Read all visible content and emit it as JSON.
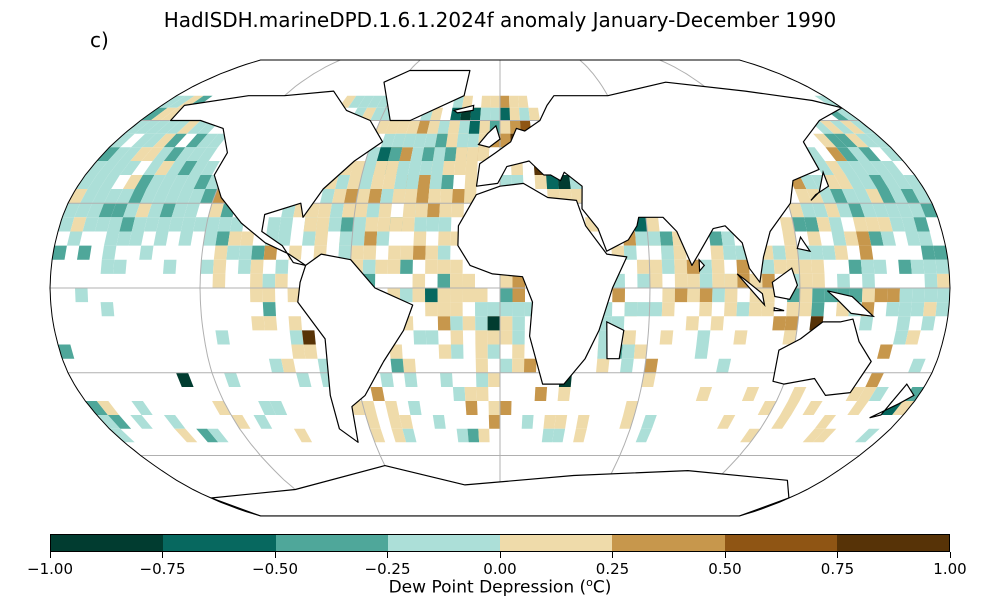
{
  "title": "HadISDH.marineDPD.1.6.1.2024f anomaly January-December 1990",
  "panel_label": "c)",
  "colorbar": {
    "label": "Dew Point Depression (",
    "label_sup": "o",
    "label_end": "C)",
    "ticks": [
      "−1.00",
      "−0.75",
      "−0.50",
      "−0.25",
      "0.00",
      "0.25",
      "0.50",
      "0.75",
      "1.00"
    ],
    "colors": [
      "#013c30",
      "#07685f",
      "#4fa79a",
      "#acdfd8",
      "#efdbaa",
      "#c7974c",
      "#8f5514",
      "#573307"
    ]
  },
  "chart_data": {
    "type": "heatmap",
    "projection": "Robinson",
    "title": "HadISDH.marineDPD.1.6.1.2024f anomaly January-December 1990",
    "colorbar_label": "Dew Point Depression (oC)",
    "vmin": -1.0,
    "vmax": 1.0,
    "levels": [
      -1.0,
      -0.75,
      -0.5,
      -0.25,
      0.0,
      0.25,
      0.5,
      0.75,
      1.0
    ],
    "grid": true,
    "cell_size_deg": 5,
    "cells_note": "lat/lon centre (deg), value = anomaly class in data units",
    "cells": [
      {
        "lat": 62.5,
        "lon": -37.5,
        "v": -0.1
      },
      {
        "lat": 62.5,
        "lon": -22.5,
        "v": -0.6
      },
      {
        "lat": 62.5,
        "lon": -17.5,
        "v": -0.8
      },
      {
        "lat": 62.5,
        "lon": -12.5,
        "v": -0.6
      },
      {
        "lat": 62.5,
        "lon": -7.5,
        "v": -0.1
      },
      {
        "lat": 62.5,
        "lon": 2.5,
        "v": -0.7
      },
      {
        "lat": 57.5,
        "lon": -52.5,
        "v": 0.1
      },
      {
        "lat": 57.5,
        "lon": -32.5,
        "v": 0.1
      },
      {
        "lat": 57.5,
        "lon": -22.5,
        "v": 0.1
      },
      {
        "lat": 57.5,
        "lon": -12.5,
        "v": -0.6
      },
      {
        "lat": 57.5,
        "lon": 7.5,
        "v": 0.4
      },
      {
        "lat": 57.5,
        "lon": 12.5,
        "v": 0.6
      },
      {
        "lat": 52.5,
        "lon": -42.5,
        "v": -0.1
      },
      {
        "lat": 52.5,
        "lon": -27.5,
        "v": -0.4
      },
      {
        "lat": 52.5,
        "lon": -17.5,
        "v": -0.1
      },
      {
        "lat": 52.5,
        "lon": 2.5,
        "v": 0.3
      },
      {
        "lat": 52.5,
        "lon": 7.5,
        "v": 0.9
      },
      {
        "lat": 47.5,
        "lon": -52.5,
        "v": -0.6
      },
      {
        "lat": 47.5,
        "lon": -47.5,
        "v": -0.4
      },
      {
        "lat": 47.5,
        "lon": -37.5,
        "v": -0.1
      },
      {
        "lat": 47.5,
        "lon": -32.5,
        "v": -0.4
      },
      {
        "lat": 47.5,
        "lon": -22.5,
        "v": -0.4
      },
      {
        "lat": 47.5,
        "lon": -17.5,
        "v": 0.1
      },
      {
        "lat": 47.5,
        "lon": -7.5,
        "v": 0.1
      },
      {
        "lat": 47.5,
        "lon": 2.5,
        "v": -0.1
      },
      {
        "lat": 42.5,
        "lon": -62.5,
        "v": 0.1
      },
      {
        "lat": 42.5,
        "lon": -57.5,
        "v": -0.1
      },
      {
        "lat": 42.5,
        "lon": -47.5,
        "v": 0.1
      },
      {
        "lat": 42.5,
        "lon": -27.5,
        "v": -0.1
      },
      {
        "lat": 42.5,
        "lon": -12.5,
        "v": 0.1
      },
      {
        "lat": 42.5,
        "lon": 7.5,
        "v": 0.1
      },
      {
        "lat": 42.5,
        "lon": 17.5,
        "v": 0.9
      },
      {
        "lat": 37.5,
        "lon": -37.5,
        "v": -0.1
      },
      {
        "lat": 37.5,
        "lon": -22.5,
        "v": -0.4
      },
      {
        "lat": 37.5,
        "lon": 22.5,
        "v": -0.6
      },
      {
        "lat": 37.5,
        "lon": 27.5,
        "v": -0.8
      },
      {
        "lat": 32.5,
        "lon": -42.5,
        "v": 0.1
      },
      {
        "lat": 32.5,
        "lon": -17.5,
        "v": 0.3
      },
      {
        "lat": 27.5,
        "lon": -62.5,
        "v": 0.1
      },
      {
        "lat": 27.5,
        "lon": -52.5,
        "v": -0.1
      },
      {
        "lat": 27.5,
        "lon": -32.5,
        "v": 0.1
      },
      {
        "lat": 22.5,
        "lon": -77.5,
        "v": 0.1
      },
      {
        "lat": 22.5,
        "lon": -57.5,
        "v": -0.1
      },
      {
        "lat": 22.5,
        "lon": -42.5,
        "v": 0.1
      },
      {
        "lat": 22.5,
        "lon": 57.5,
        "v": -0.6
      },
      {
        "lat": 17.5,
        "lon": -62.5,
        "v": -0.1
      },
      {
        "lat": 17.5,
        "lon": -32.5,
        "v": 0.1
      },
      {
        "lat": 17.5,
        "lon": 62.5,
        "v": -0.1
      },
      {
        "lat": 12.5,
        "lon": 67.5,
        "v": -0.1
      },
      {
        "lat": 7.5,
        "lon": 77.5,
        "v": 0.3
      },
      {
        "lat": 2.5,
        "lon": 92.5,
        "v": 0.1
      },
      {
        "lat": -2.5,
        "lon": -27.5,
        "v": -0.6
      },
      {
        "lat": -2.5,
        "lon": 2.5,
        "v": -0.4
      },
      {
        "lat": -2.5,
        "lon": 47.5,
        "v": 0.4
      },
      {
        "lat": -7.5,
        "lon": -22.5,
        "v": 0.1
      },
      {
        "lat": -7.5,
        "lon": 52.5,
        "v": -0.1
      },
      {
        "lat": -12.5,
        "lon": -2.5,
        "v": -0.9
      },
      {
        "lat": -12.5,
        "lon": 127.5,
        "v": 0.9
      },
      {
        "lat": -17.5,
        "lon": 17.5,
        "v": 0.1
      },
      {
        "lat": -17.5,
        "lon": -77.5,
        "v": 0.9
      },
      {
        "lat": -22.5,
        "lon": 42.5,
        "v": -0.1
      },
      {
        "lat": -27.5,
        "lon": -42.5,
        "v": -0.4
      },
      {
        "lat": -27.5,
        "lon": 12.5,
        "v": 0.4
      },
      {
        "lat": -32.5,
        "lon": -132.5,
        "v": -0.9
      },
      {
        "lat": -32.5,
        "lon": 27.5,
        "v": -0.9
      },
      {
        "lat": -37.5,
        "lon": -52.5,
        "v": 0.4
      },
      {
        "lat": -42.5,
        "lon": 172.5,
        "v": -0.6
      },
      {
        "lat": -47.5,
        "lon": -57.5,
        "v": 0.1
      }
    ]
  }
}
